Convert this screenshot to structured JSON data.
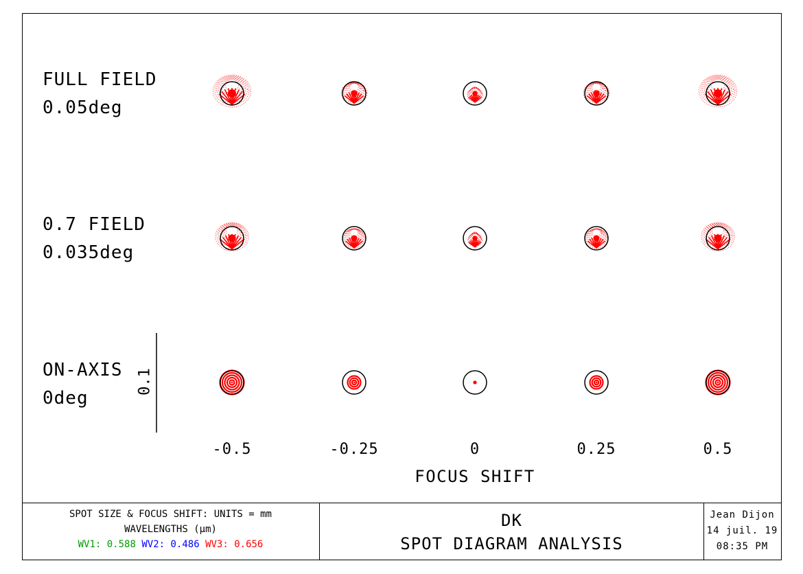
{
  "chart_data": {
    "type": "spot-diagram",
    "title": "SPOT DIAGRAM ANALYSIS",
    "xlabel": "FOCUS SHIFT",
    "focus_shifts": [
      "-0.5",
      "-0.25",
      "0",
      "0.25",
      "0.5"
    ],
    "scale_bar_label": "0.1",
    "fields": [
      {
        "name": "FULL FIELD",
        "angle": "0.05deg"
      },
      {
        "name": "0.7 FIELD",
        "angle": "0.035deg"
      },
      {
        "name": "ON-AXIS",
        "angle": "0deg"
      }
    ],
    "spot_color": "#ff0000",
    "circle_color": "#000000"
  },
  "footer": {
    "units_line": "SPOT SIZE & FOCUS SHIFT: UNITS = mm",
    "wavelengths_line": "WAVELENGTHS (µm)",
    "wavelengths": [
      {
        "label": "WV1: 0.588",
        "color": "#009a00"
      },
      {
        "label": "WV2: 0.486",
        "color": "#0000ff"
      },
      {
        "label": "WV3: 0.656",
        "color": "#ff0000"
      }
    ],
    "design_name": "DK",
    "analysis_title": "SPOT DIAGRAM ANALYSIS",
    "author": "Jean Dijon",
    "date": "14 juil. 19",
    "time": "08:35 PM"
  }
}
